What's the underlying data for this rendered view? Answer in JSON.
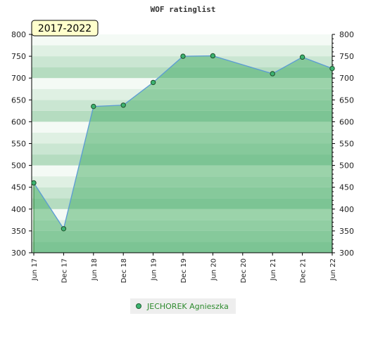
{
  "chart_data": {
    "type": "area",
    "title": "WOF ratinglist",
    "period_label": "2017-2022",
    "x": [
      "Jun 17",
      "Dec 17",
      "Jun 18",
      "Dec 18",
      "Jun 19",
      "Dec 19",
      "Jun 20",
      "Dec 20",
      "Jun 21",
      "Dec 21",
      "Jun 22"
    ],
    "series": [
      {
        "name": "JECHOREK Agnieszka",
        "points": [
          {
            "x": "Jun 17",
            "y": 460
          },
          {
            "x": "Dec 17",
            "y": 355
          },
          {
            "x": "Jun 18",
            "y": 635
          },
          {
            "x": "Dec 18",
            "y": 638
          },
          {
            "x": "Jun 19",
            "y": 690
          },
          {
            "x": "Dec 19",
            "y": 750
          },
          {
            "x": "Jun 20",
            "y": 751
          },
          {
            "x": "Jun 21",
            "y": 710
          },
          {
            "x": "Dec 21",
            "y": 748
          },
          {
            "x": "Jun 22",
            "y": 722
          }
        ]
      }
    ],
    "ylim": [
      300,
      800
    ],
    "yticks": [
      300,
      350,
      400,
      450,
      500,
      550,
      600,
      650,
      700,
      750,
      800
    ],
    "xlabel": "",
    "ylabel": "",
    "legend_position": "bottom",
    "colors": {
      "line": "#5b9bd5",
      "marker": "#3cb371",
      "fill": "#7cc494",
      "band_dark": "#b5dcc0",
      "band_light": "#f4faf5"
    }
  }
}
